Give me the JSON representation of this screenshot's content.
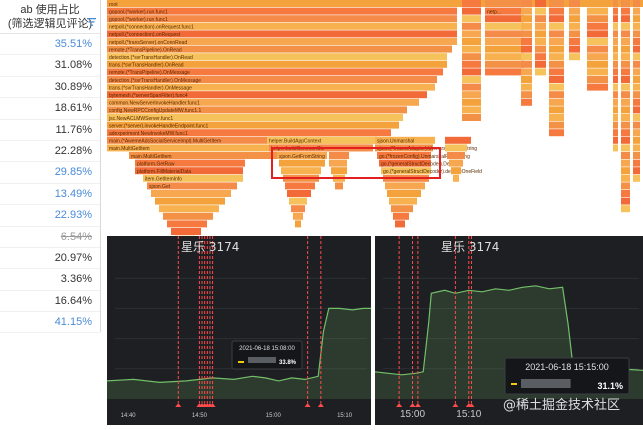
{
  "table": {
    "header_line1": "ab 使用占比",
    "header_line2": "(筛选逻辑见评论)",
    "rows": [
      {
        "value": "35.51%",
        "style": "blue"
      },
      {
        "value": "31.08%",
        "style": "normal"
      },
      {
        "value": "30.89%",
        "style": "normal"
      },
      {
        "value": "18.61%",
        "style": "normal"
      },
      {
        "value": "11.76%",
        "style": "normal"
      },
      {
        "value": "22.28%",
        "style": "normal"
      },
      {
        "value": "29.85%",
        "style": "blue"
      },
      {
        "value": "13.49%",
        "style": "blue"
      },
      {
        "value": "22.93%",
        "style": "blue"
      },
      {
        "value": "6.54%",
        "style": "strike"
      },
      {
        "value": "20.97%",
        "style": "normal"
      },
      {
        "value": "3.36%",
        "style": "normal"
      },
      {
        "value": "16.64%",
        "style": "normal"
      },
      {
        "value": "41.15%",
        "style": "blue"
      }
    ]
  },
  "flame": {
    "frames": [
      "root",
      "gopool.(*worker).run.func1",
      "gopool.(*worker).run.func1",
      "netpoll.(*connection).onRequest.func1",
      "netpoll.(*connection).onRequest",
      "netpoll.(*transServer).onConnRead",
      "remote.(*TransPipeline).OnRead",
      "detection.(*svrTransHandler).OnRead",
      "trans.(*svrTransHandler).OnRead",
      "remote.(*TransPipeline).OnMessage",
      "detection.(*svrTransHandler).OnMessage",
      "trans.(*svrTransHandler).OnMessage",
      "bytemesh.(*serverSpanFilter).func4",
      "common.NewServerInvokeHandler.func1",
      "config.NewRPCConfigUpdateMW.func1.1",
      "jsc.NewACLMWServer.func1",
      "server.(*server).invokeHandleEndpoint.func1",
      "adexperiment.NewInvokeMW.func1",
      "main.(*AwemeAdsSocialServiceImpl).MultiGetItem",
      "main.MultiGetItem",
      "platform.GetRaw",
      "helper.BuildAppContext",
      "platform.FillMaterialData",
      "helper.buildCommonCtx",
      "item.GetItemInfo",
      "sjson.Unmarshal",
      "sjson.GetFromString",
      "sjson.(*frozenAdapter).UnmarshalFromString",
      "go.(*frozenConfig).UnmarshalFromString",
      "sjson.Get",
      "go.(*generalStructDecoder).Decode",
      "go.(*generalStructDecoder).decodeOneField"
    ],
    "right_frames": [
      "runtime.mcall",
      "netp...",
      "sync...",
      "runtime..."
    ]
  },
  "chart_left": {
    "x_ticks": [
      "14:40",
      "14:50",
      "15:00",
      "15:10"
    ],
    "tooltip_time": "2021-06-18 15:08:00",
    "tooltip_value": "33.8%",
    "watermark": "星乐 3174"
  },
  "chart_right": {
    "x_ticks": [
      "15:00",
      "15:10"
    ],
    "tooltip_time": "2021-06-18 15:15:00",
    "tooltip_value": "31.1%",
    "watermark": "星乐 3174"
  },
  "site_watermark": "@稀土掘金技术社区",
  "colors": {
    "blue_text": "#4a8bd8",
    "highlight_box": "#e31f1f",
    "series_line": "#73bf69",
    "marker_line": "#ff4b4b"
  }
}
